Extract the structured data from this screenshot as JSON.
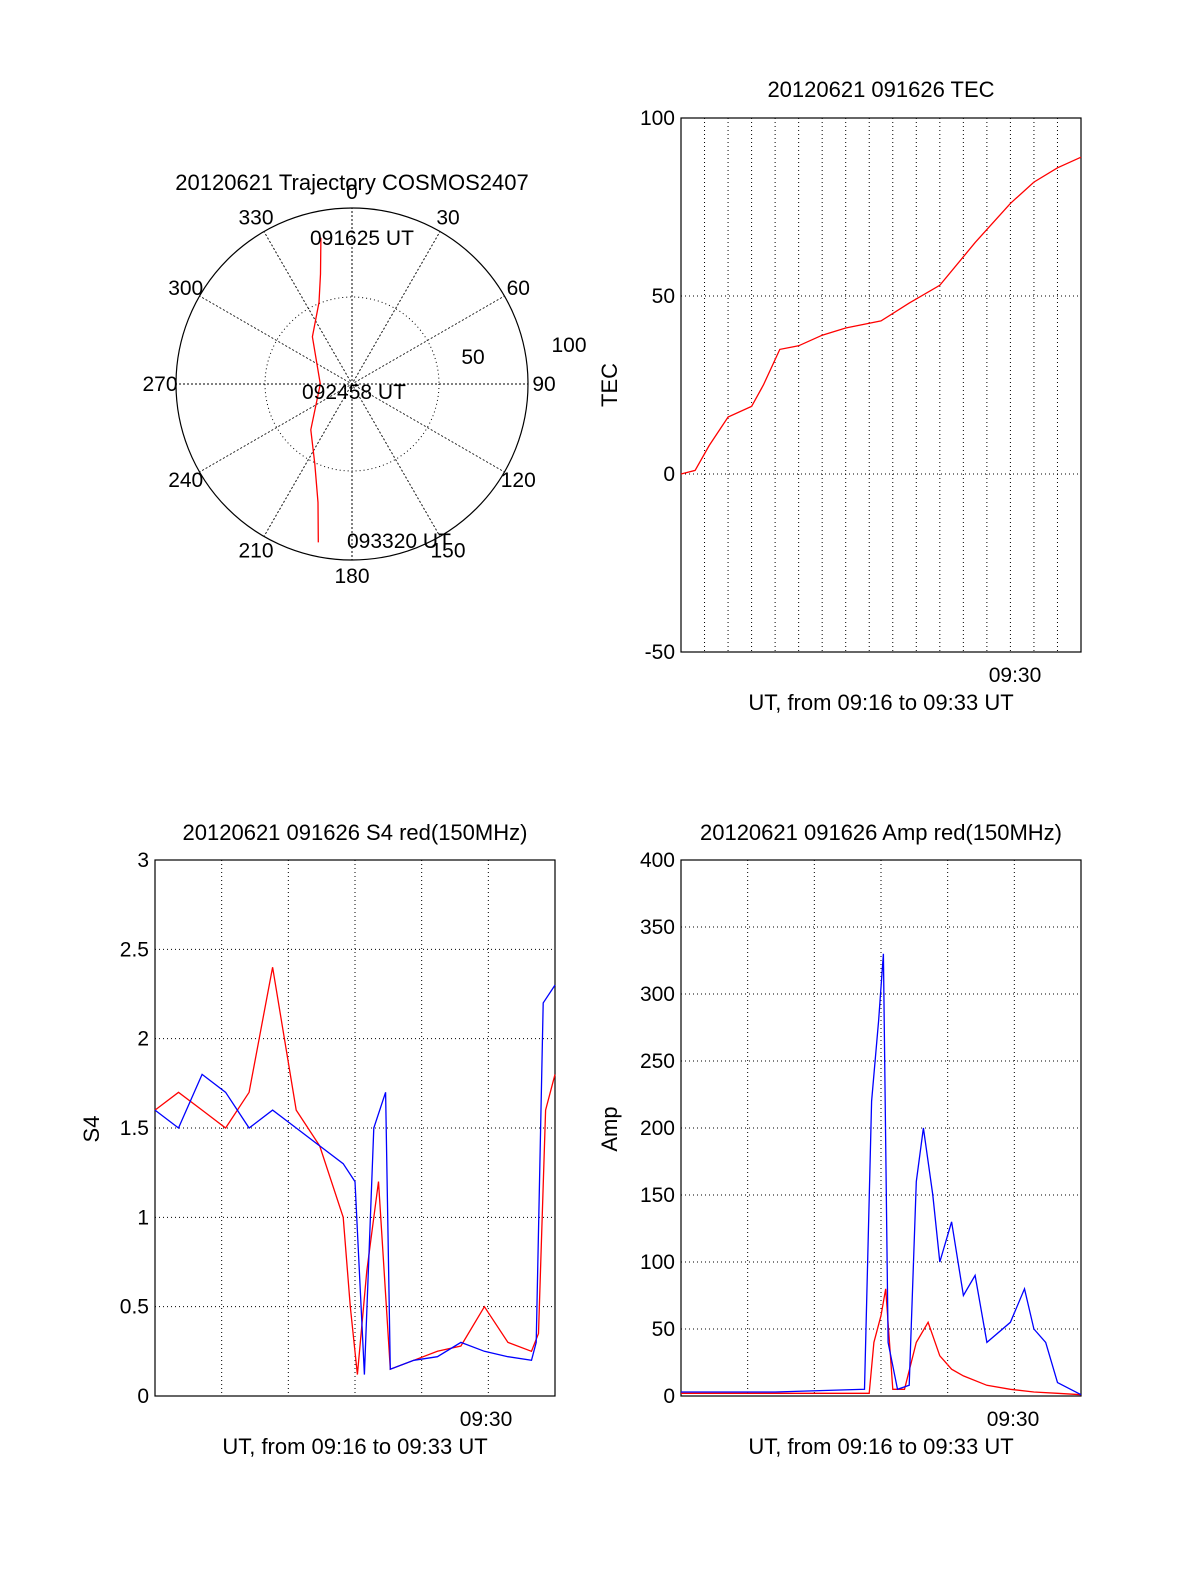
{
  "chart_data": [
    {
      "type": "polar",
      "title": "20120621 Trajectory COSMOS2407",
      "angle_ticks": [
        "0",
        "30",
        "60",
        "90",
        "120",
        "150",
        "180",
        "210",
        "240",
        "270",
        "300",
        "330"
      ],
      "radius_ticks": [
        "50",
        "100"
      ],
      "annotations": {
        "start": "091625 UT",
        "mid": "092458 UT",
        "end": "093320 UT"
      },
      "series": [
        {
          "color": "#ff0000",
          "azimuth_deg": [
            348,
            344,
            338,
            320,
            270,
            222,
            205,
            196,
            192
          ],
          "zenith": [
            85,
            65,
            50,
            35,
            18,
            35,
            50,
            70,
            92
          ]
        }
      ]
    },
    {
      "type": "line",
      "title": "20120621 091626 TEC",
      "ylabel": "TEC",
      "xlabel": "UT, from 09:16 to 09:33 UT",
      "xtick_label": "09:30",
      "ylim": [
        -50,
        100
      ],
      "yticks": [
        "100",
        "50",
        "0",
        "-50"
      ],
      "series": [
        {
          "color": "#ff0000",
          "x": [
            0,
            0.6,
            1.2,
            2,
            3,
            3.5,
            4.2,
            5,
            6,
            7,
            8.5,
            9.7,
            11,
            12.5,
            14,
            15,
            16,
            17
          ],
          "y": [
            0,
            1,
            8,
            16,
            19,
            25,
            35,
            36,
            39,
            41,
            43,
            48,
            53,
            65,
            76,
            82,
            86,
            89
          ]
        }
      ]
    },
    {
      "type": "line",
      "title": "20120621 091626 S4 red(150MHz)",
      "ylabel": "S4",
      "xlabel": "UT, from 09:16 to 09:33 UT",
      "xtick_label": "09:30",
      "ylim": [
        0,
        3
      ],
      "yticks": [
        "3",
        "2.5",
        "2",
        "1.5",
        "1",
        "0.5",
        "0"
      ],
      "series": [
        {
          "color": "#ff0000",
          "x": [
            0,
            1,
            2,
            3,
            4,
            5,
            6,
            7,
            8,
            8.3,
            8.6,
            9,
            9.5,
            10,
            11,
            12,
            13,
            14,
            15,
            16,
            16.3,
            16.6,
            17
          ],
          "y": [
            1.6,
            1.7,
            1.6,
            1.5,
            1.7,
            2.4,
            1.6,
            1.4,
            1.0,
            0.5,
            0.12,
            0.7,
            1.2,
            0.15,
            0.2,
            0.25,
            0.28,
            0.5,
            0.3,
            0.25,
            0.35,
            1.6,
            1.8
          ]
        },
        {
          "color": "#0000ff",
          "x": [
            0,
            1,
            2,
            3,
            4,
            5,
            6,
            7,
            8,
            8.5,
            8.9,
            9.3,
            9.8,
            10,
            11,
            12,
            13,
            14,
            15,
            16,
            16.2,
            16.5,
            17
          ],
          "y": [
            1.6,
            1.5,
            1.8,
            1.7,
            1.5,
            1.6,
            1.5,
            1.4,
            1.3,
            1.2,
            0.12,
            1.5,
            1.7,
            0.15,
            0.2,
            0.22,
            0.3,
            0.25,
            0.22,
            0.2,
            0.3,
            2.2,
            2.3
          ]
        }
      ]
    },
    {
      "type": "line",
      "title": "20120621 091626 Amp red(150MHz)",
      "ylabel": "Amp",
      "xlabel": "UT, from 09:16 to 09:33 UT",
      "xtick_label": "09:30",
      "ylim": [
        0,
        400
      ],
      "yticks": [
        "400",
        "350",
        "300",
        "250",
        "200",
        "150",
        "100",
        "50",
        "0"
      ],
      "series": [
        {
          "color": "#ff0000",
          "x": [
            0,
            4,
            8,
            8.2,
            8.5,
            8.7,
            9,
            9.5,
            10,
            10.5,
            11,
            11.5,
            12,
            13,
            14,
            15,
            16,
            17
          ],
          "y": [
            2,
            2,
            2,
            40,
            60,
            80,
            5,
            5,
            40,
            55,
            30,
            20,
            15,
            8,
            5,
            3,
            2,
            1
          ]
        },
        {
          "color": "#0000ff",
          "x": [
            0,
            4,
            7.8,
            8.1,
            8.4,
            8.6,
            8.8,
            9.2,
            9.7,
            10,
            10.3,
            10.7,
            11,
            11.5,
            12,
            12.5,
            13,
            14,
            14.6,
            15,
            15.5,
            16,
            17
          ],
          "y": [
            3,
            3,
            5,
            220,
            280,
            330,
            40,
            5,
            8,
            160,
            200,
            150,
            100,
            130,
            75,
            90,
            40,
            55,
            80,
            50,
            40,
            10,
            1
          ]
        }
      ]
    }
  ]
}
